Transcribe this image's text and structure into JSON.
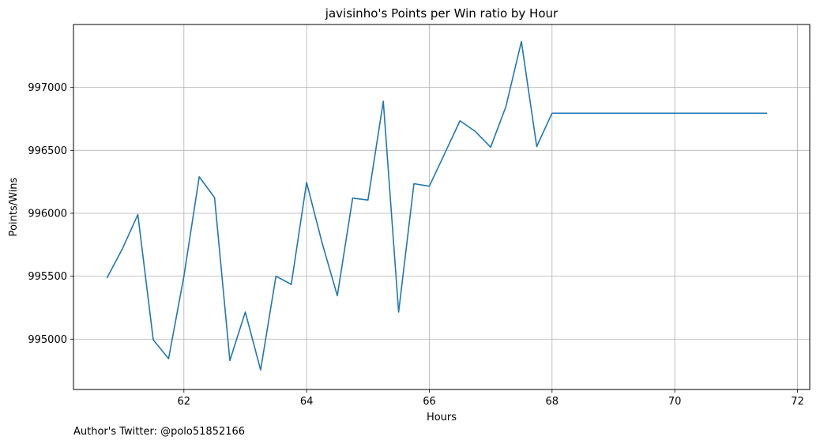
{
  "chart_data": {
    "type": "line",
    "title": "javisinho's Points per Win ratio by Hour",
    "xlabel": "Hours",
    "ylabel": "Points/Wins",
    "xlim": [
      60.2,
      72.2
    ],
    "ylim": [
      994600,
      997500
    ],
    "xticks": [
      62,
      64,
      66,
      68,
      70,
      72
    ],
    "yticks": [
      995000,
      995500,
      996000,
      996500,
      997000
    ],
    "grid": true,
    "line_color": "#1f77b4",
    "x": [
      60.75,
      61.0,
      61.25,
      61.5,
      61.75,
      62.0,
      62.25,
      62.5,
      62.75,
      63.0,
      63.25,
      63.5,
      63.75,
      64.0,
      64.25,
      64.5,
      64.75,
      65.0,
      65.25,
      65.5,
      65.75,
      66.0,
      66.25,
      66.5,
      66.75,
      67.0,
      67.25,
      67.5,
      67.75,
      68.0,
      71.5
    ],
    "values": [
      995490,
      995720,
      995990,
      994995,
      994845,
      995500,
      996290,
      996125,
      994830,
      995215,
      994755,
      995500,
      995435,
      996245,
      995770,
      995345,
      996120,
      996105,
      996890,
      995215,
      996235,
      996215,
      996475,
      996735,
      996650,
      996525,
      996850,
      997365,
      996530,
      996795,
      996795
    ]
  },
  "footer": {
    "credit": "Author's Twitter: @polo51852166"
  }
}
